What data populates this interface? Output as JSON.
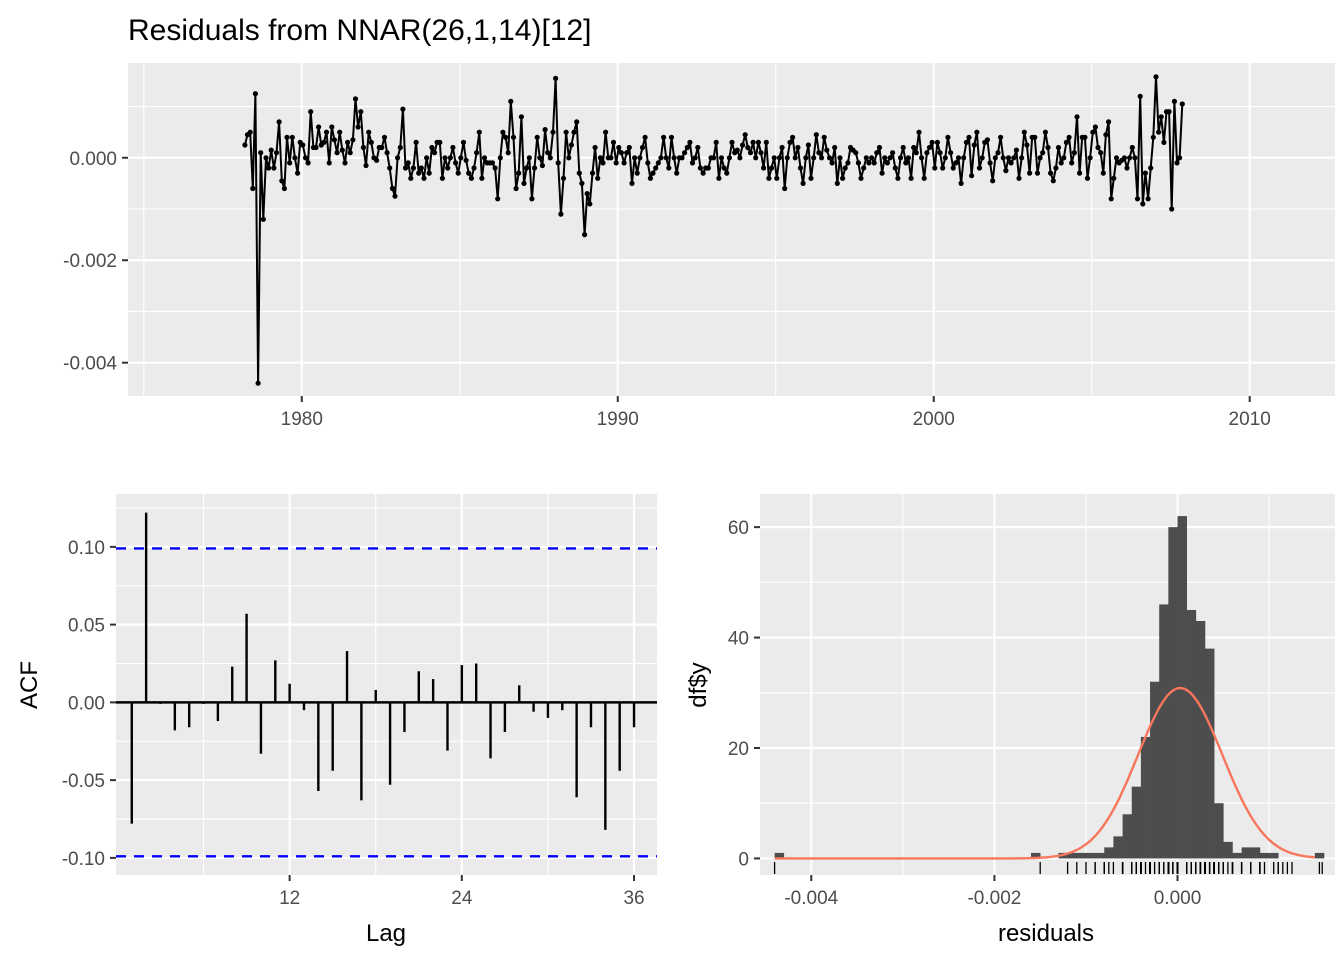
{
  "colors": {
    "panel": "#ebebeb",
    "grid": "#ffffff",
    "line": "#000000",
    "conf": "#0000ff",
    "bar": "#4d4d4d",
    "density": "#f8765c",
    "tick_text": "#4d4d4d"
  },
  "chart_data": [
    {
      "type": "line",
      "title": "Residuals from NNAR(26,1,14)[12]",
      "xlabel": "",
      "ylabel": "",
      "xlim": [
        1974.5,
        2012.7
      ],
      "ylim": [
        -0.00465,
        0.00185
      ],
      "x_ticks": [
        1980,
        1990,
        2000,
        2010
      ],
      "x_tick_labels": [
        "1980",
        "1990",
        "2000",
        "2010"
      ],
      "y_ticks": [
        -0.004,
        -0.002,
        0.0
      ],
      "y_tick_labels": [
        "-0.004",
        "-0.002",
        "0.000"
      ],
      "start": 1978.2,
      "frequency": 12,
      "values": [
        0.00025,
        0.00045,
        0.0005,
        -0.0006,
        0.00125,
        -0.0044,
        0.0001,
        -0.0012,
        0.0,
        -0.0002,
        0.00015,
        -0.0002,
        0.0001,
        0.0007,
        -0.00045,
        -0.0006,
        0.0004,
        -0.0001,
        0.0004,
        0.0,
        -0.0003,
        0.0003,
        0.00025,
        0.0,
        -0.0001,
        0.0009,
        0.0002,
        0.0002,
        0.0006,
        0.00025,
        0.0003,
        0.0005,
        -0.0001,
        0.0006,
        0.00035,
        0.0001,
        0.0005,
        0.00015,
        -0.0001,
        0.0003,
        0.0001,
        0.00035,
        0.00115,
        0.0006,
        0.0009,
        0.0002,
        -0.00015,
        0.0005,
        0.0003,
        0.0,
        -5e-05,
        0.0002,
        0.0002,
        0.0004,
        0.0001,
        -0.0002,
        -0.0006,
        -0.00075,
        0.0,
        0.0002,
        0.00095,
        -0.0002,
        -0.0001,
        -0.0004,
        -0.0002,
        0.0003,
        -0.0003,
        -0.0002,
        -0.0004,
        0.0,
        -0.0003,
        0.0002,
        0.0001,
        0.0003,
        0.0003,
        -0.0004,
        0.0,
        -0.0002,
        0.0,
        0.0002,
        -0.0001,
        -0.0003,
        0.0,
        0.0003,
        -5e-05,
        -0.0003,
        -0.0004,
        -0.0002,
        0.0001,
        0.0005,
        -0.0004,
        0.0,
        -0.0001,
        -0.0001,
        -0.0001,
        -0.0002,
        -0.0008,
        0.0,
        0.0005,
        0.0004,
        0.0001,
        0.0011,
        0.0004,
        -0.0006,
        -0.0003,
        0.0008,
        -0.0005,
        -0.0002,
        0.0,
        -0.0008,
        -0.0002,
        0.0004,
        0.0,
        -0.00015,
        0.00055,
        0.0001,
        0.0,
        0.0005,
        0.00155,
        -0.0001,
        -0.0011,
        -0.0004,
        0.0005,
        0.0,
        0.00025,
        0.0005,
        0.0007,
        -0.0003,
        -0.0005,
        -0.0015,
        -0.0007,
        -0.0009,
        -0.0003,
        0.0002,
        -0.0004,
        0.0,
        -0.0001,
        0.0005,
        0.0,
        0.0,
        0.0003,
        -0.0001,
        0.0002,
        0.0001,
        -0.0001,
        0.0001,
        0.0002,
        -0.0005,
        0.0,
        -0.0003,
        0.0,
        0.0002,
        0.0004,
        -0.0001,
        -0.0004,
        -0.0003,
        -0.0002,
        -0.0001,
        0.0,
        0.0004,
        0.0,
        -0.0002,
        0.0004,
        0.0,
        -0.0003,
        0.0,
        0.0,
        0.0001,
        0.0002,
        0.0003,
        -0.0001,
        0.0,
        0.0002,
        -0.0002,
        -0.0003,
        -0.0002,
        -0.0002,
        0.0,
        0.0,
        0.0003,
        -0.0004,
        0.0,
        -0.0002,
        -0.0003,
        0.0,
        0.0003,
        0.0001,
        0.00015,
        0.0,
        0.00025,
        0.00045,
        0.0002,
        0.0001,
        0.0003,
        0.0,
        0.0003,
        0.0001,
        -0.0002,
        0.0003,
        -0.0004,
        -0.0002,
        0.0,
        -0.0004,
        0.0,
        0.0002,
        -0.0006,
        0.0,
        0.0003,
        0.0004,
        0.0,
        0.0002,
        -0.0002,
        -0.0005,
        0.0,
        0.00025,
        -0.0004,
        0.0,
        0.00045,
        0.0001,
        0.0,
        0.0004,
        0.00015,
        0.0,
        -0.0001,
        0.0002,
        -0.0005,
        0.0,
        -0.0004,
        -0.0002,
        -0.0001,
        0.0002,
        0.00015,
        0.0001,
        -0.0001,
        -0.0004,
        -0.0002,
        0.0,
        -0.0001,
        0.0,
        -0.0001,
        0.0001,
        0.0002,
        -0.0003,
        0.0,
        -0.0001,
        0.0,
        0.0001,
        -0.0002,
        -0.0004,
        0.0,
        0.0002,
        -0.0001,
        0.0,
        -0.0004,
        0.0002,
        0.0001,
        0.0005,
        0.0,
        -0.0004,
        0.0001,
        0.0002,
        0.0003,
        -0.0002,
        0.0003,
        0.0001,
        -0.0002,
        0.0,
        0.0004,
        0.0001,
        -0.0002,
        -0.0001,
        0.0,
        -0.0005,
        0.0,
        0.0003,
        0.0004,
        -0.00035,
        0.00025,
        0.0005,
        -0.0002,
        0.0,
        0.0003,
        0.00035,
        -0.0001,
        -0.00045,
        0.0,
        0.0001,
        0.0004,
        0.0,
        -0.00025,
        0.0,
        -0.0001,
        0.0,
        0.00015,
        -0.0004,
        0.0,
        0.0005,
        0.00025,
        -0.0003,
        0.0004,
        0.0004,
        -0.0003,
        0.0,
        0.0001,
        0.0005,
        0.0002,
        -0.0003,
        -0.00045,
        -0.0002,
        0.0002,
        -0.0001,
        0.0,
        0.0003,
        0.0004,
        -0.0001,
        0.0001,
        0.0008,
        -0.0003,
        0.0004,
        0.0004,
        -0.0004,
        0.0,
        0.0005,
        0.0006,
        0.0002,
        0.0001,
        -0.0003,
        0.00045,
        0.0007,
        -0.0008,
        -0.0004,
        0.0,
        -0.0001,
        -5e-05,
        0.0,
        -0.0002,
        0.0,
        0.0002,
        0.0,
        -0.0008,
        0.0012,
        -0.0009,
        -0.0003,
        -0.0008,
        -0.0002,
        0.0004,
        0.00158,
        0.0005,
        0.0008,
        0.0003,
        0.0009,
        0.0009,
        -0.001,
        0.0011,
        -0.0001,
        0.0,
        0.00105
      ],
      "points_shown": true
    },
    {
      "type": "bar",
      "title": "",
      "xlabel": "Lag",
      "ylabel": "ACF",
      "xlim": [
        -0.1,
        37.6
      ],
      "ylim": [
        -0.111,
        0.134
      ],
      "x_ticks": [
        12,
        24,
        36
      ],
      "x_tick_labels": [
        "12",
        "24",
        "36"
      ],
      "y_ticks": [
        -0.1,
        -0.05,
        0.0,
        0.05,
        0.1
      ],
      "y_tick_labels": [
        "-0.10",
        "-0.05",
        "0.00",
        "0.05",
        "0.10"
      ],
      "lags": [
        1,
        2,
        3,
        4,
        5,
        6,
        7,
        8,
        9,
        10,
        11,
        12,
        13,
        14,
        15,
        16,
        17,
        18,
        19,
        20,
        21,
        22,
        23,
        24,
        25,
        26,
        27,
        28,
        29,
        30,
        31,
        32,
        33,
        34,
        35,
        36
      ],
      "values": [
        -0.078,
        0.122,
        -0.001,
        -0.018,
        -0.016,
        -0.001,
        -0.012,
        0.023,
        0.057,
        -0.033,
        0.027,
        0.012,
        -0.005,
        -0.057,
        -0.044,
        0.033,
        -0.063,
        0.008,
        -0.053,
        -0.019,
        0.02,
        0.015,
        -0.031,
        0.024,
        0.025,
        -0.036,
        -0.019,
        0.011,
        -0.006,
        -0.01,
        -0.005,
        -0.061,
        -0.016,
        -0.082,
        -0.044,
        -0.016
      ],
      "confidence_bound": 0.099
    },
    {
      "type": "bar",
      "title": "",
      "xlabel": "residuals",
      "ylabel": "df$y",
      "xlim": [
        -0.00456,
        0.00172
      ],
      "ylim": [
        -3,
        66
      ],
      "x_ticks": [
        -0.004,
        -0.002,
        0.0
      ],
      "x_tick_labels": [
        "-0.004",
        "-0.002",
        "0.000"
      ],
      "y_ticks": [
        0,
        20,
        40,
        60
      ],
      "y_tick_labels": [
        "0",
        "20",
        "40",
        "60"
      ],
      "bin_width": 0.0001,
      "bin_starts": [
        -0.0044,
        -0.0016,
        -0.0013,
        -0.0012,
        -0.0011,
        -0.001,
        -0.0009,
        -0.0008,
        -0.0007,
        -0.0006,
        -0.0005,
        -0.0004,
        -0.0003,
        -0.0002,
        -0.0001,
        0.0,
        0.0001,
        0.0002,
        0.0003,
        0.0004,
        0.0005,
        0.0006,
        0.0007,
        0.0008,
        0.0009,
        0.001,
        0.0015
      ],
      "counts": [
        1,
        1,
        1,
        1,
        1,
        1,
        1,
        2,
        4,
        8,
        13,
        22,
        32,
        46,
        60,
        62,
        45,
        43,
        38,
        10,
        3,
        1,
        2,
        2,
        1,
        1,
        1
      ],
      "density_series": "normal fit",
      "rug": true
    }
  ]
}
